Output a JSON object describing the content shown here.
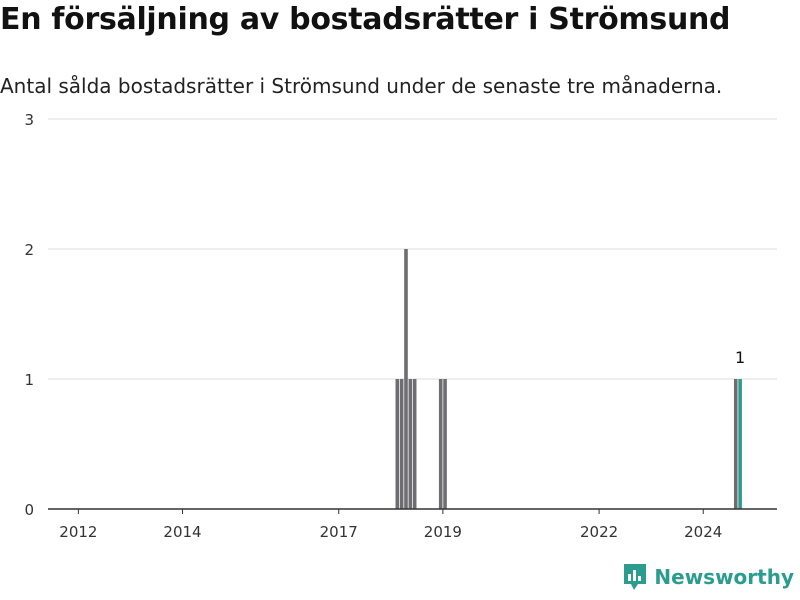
{
  "header": {
    "title": "En försäljning av bostadsrätter i Strömsund",
    "subtitle": "Antal sålda bostadsrätter i Strömsund under de senaste tre månaderna."
  },
  "brand": {
    "name": "Newsworthy",
    "icon": "bar-chart-speech-bubble-icon"
  },
  "colors": {
    "bar": "#6e6e72",
    "highlight": "#2a9d8f",
    "grid": "#dddddd",
    "axis": "#333333"
  },
  "chart_data": {
    "type": "bar",
    "title": "En försäljning av bostadsrätter i Strömsund",
    "subtitle": "Antal sålda bostadsrätter i Strömsund under de senaste tre månaderna.",
    "xlabel": "",
    "ylabel": "",
    "x_range": [
      "2011-06",
      "2025-06"
    ],
    "ylim": [
      0,
      3
    ],
    "y_ticks": [
      0,
      1,
      2,
      3
    ],
    "x_ticks": [
      "2012",
      "2014",
      "2017",
      "2019",
      "2022",
      "2024"
    ],
    "grid": true,
    "legend": "none",
    "series": [
      {
        "points": [
          {
            "date": "2018-02",
            "value": 1
          },
          {
            "date": "2018-03",
            "value": 1
          },
          {
            "date": "2018-04",
            "value": 2
          },
          {
            "date": "2018-05",
            "value": 1
          },
          {
            "date": "2018-06",
            "value": 1
          },
          {
            "date": "2018-12",
            "value": 1
          },
          {
            "date": "2019-01",
            "value": 1
          },
          {
            "date": "2024-08",
            "value": 1
          },
          {
            "date": "2024-09",
            "value": 1,
            "highlight": true,
            "label": "1"
          }
        ]
      }
    ]
  }
}
